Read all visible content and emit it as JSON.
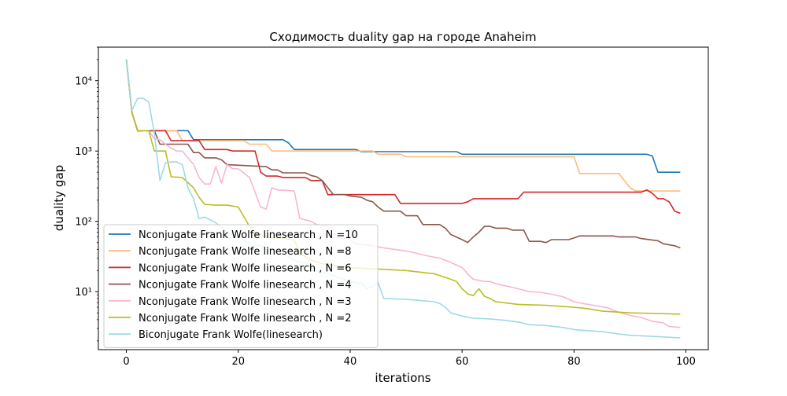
{
  "chart_data": {
    "type": "line",
    "title": "Сходимость duality gap на городе Anaheim",
    "xlabel": "iterations",
    "ylabel": "duality gap",
    "xlim": [
      -5,
      104
    ],
    "ylim": [
      1.5,
      30000
    ],
    "yscale": "log",
    "grid": false,
    "legend_position": "lower-left",
    "x_ticks": [
      0,
      20,
      40,
      60,
      80,
      100
    ],
    "x_tick_labels": [
      "0",
      "20",
      "40",
      "60",
      "80",
      "100"
    ],
    "y_ticks": [
      10,
      100,
      1000,
      10000
    ],
    "y_tick_labels": [
      "10¹",
      "10²",
      "10³",
      "10⁴"
    ],
    "series": [
      {
        "name": "Nconjugate Frank Wolfe linesearch , N =10",
        "color": "#1f77b4",
        "points": [
          [
            0,
            20000
          ],
          [
            1,
            3500
          ],
          [
            2,
            1950
          ],
          [
            11,
            1950
          ],
          [
            12,
            1450
          ],
          [
            28,
            1450
          ],
          [
            29,
            1300
          ],
          [
            30,
            1050
          ],
          [
            41,
            1050
          ],
          [
            42,
            980
          ],
          [
            59,
            980
          ],
          [
            60,
            900
          ],
          [
            93,
            900
          ],
          [
            94,
            850
          ],
          [
            95,
            500
          ],
          [
            99,
            500
          ]
        ]
      },
      {
        "name": "Nconjugate Frank Wolfe linesearch , N =8",
        "color": "#ffbb78",
        "points": [
          [
            0,
            20000
          ],
          [
            1,
            3500
          ],
          [
            2,
            1950
          ],
          [
            9,
            1950
          ],
          [
            10,
            1400
          ],
          [
            21,
            1400
          ],
          [
            22,
            1250
          ],
          [
            25,
            1250
          ],
          [
            26,
            1000
          ],
          [
            44,
            1000
          ],
          [
            45,
            900
          ],
          [
            49,
            900
          ],
          [
            50,
            830
          ],
          [
            80,
            830
          ],
          [
            81,
            480
          ],
          [
            88,
            480
          ],
          [
            90,
            300
          ],
          [
            91,
            270
          ],
          [
            99,
            270
          ]
        ]
      },
      {
        "name": "Nconjugate Frank Wolfe linesearch , N =6",
        "color": "#d62728",
        "points": [
          [
            0,
            20000
          ],
          [
            1,
            3500
          ],
          [
            2,
            1950
          ],
          [
            7,
            1950
          ],
          [
            8,
            1400
          ],
          [
            13,
            1400
          ],
          [
            14,
            1050
          ],
          [
            18,
            1050
          ],
          [
            19,
            1000
          ],
          [
            23,
            1000
          ],
          [
            24,
            500
          ],
          [
            25,
            440
          ],
          [
            27,
            440
          ],
          [
            28,
            420
          ],
          [
            32,
            420
          ],
          [
            33,
            380
          ],
          [
            35,
            380
          ],
          [
            36,
            240
          ],
          [
            48,
            240
          ],
          [
            49,
            180
          ],
          [
            60,
            180
          ],
          [
            61,
            190
          ],
          [
            62,
            210
          ],
          [
            70,
            210
          ],
          [
            71,
            260
          ],
          [
            92,
            260
          ],
          [
            93,
            280
          ],
          [
            94,
            250
          ],
          [
            95,
            210
          ],
          [
            96,
            210
          ],
          [
            97,
            190
          ],
          [
            98,
            140
          ],
          [
            99,
            130
          ]
        ]
      },
      {
        "name": "Nconjugate Frank Wolfe linesearch , N =4",
        "color": "#8c564b",
        "points": [
          [
            0,
            20000
          ],
          [
            1,
            3500
          ],
          [
            2,
            1950
          ],
          [
            5,
            1950
          ],
          [
            6,
            1250
          ],
          [
            11,
            1250
          ],
          [
            12,
            950
          ],
          [
            13,
            950
          ],
          [
            14,
            800
          ],
          [
            16,
            800
          ],
          [
            17,
            750
          ],
          [
            18,
            640
          ],
          [
            25,
            600
          ],
          [
            26,
            540
          ],
          [
            27,
            540
          ],
          [
            28,
            490
          ],
          [
            32,
            490
          ],
          [
            33,
            450
          ],
          [
            34,
            430
          ],
          [
            35,
            380
          ],
          [
            37,
            240
          ],
          [
            39,
            240
          ],
          [
            40,
            230
          ],
          [
            42,
            220
          ],
          [
            43,
            200
          ],
          [
            44,
            190
          ],
          [
            45,
            160
          ],
          [
            46,
            140
          ],
          [
            49,
            140
          ],
          [
            50,
            120
          ],
          [
            52,
            120
          ],
          [
            53,
            90
          ],
          [
            56,
            90
          ],
          [
            57,
            80
          ],
          [
            58,
            65
          ],
          [
            60,
            55
          ],
          [
            61,
            50
          ],
          [
            62,
            60
          ],
          [
            63,
            70
          ],
          [
            64,
            85
          ],
          [
            65,
            85
          ],
          [
            66,
            80
          ],
          [
            68,
            80
          ],
          [
            69,
            75
          ],
          [
            71,
            75
          ],
          [
            72,
            52
          ],
          [
            74,
            52
          ],
          [
            75,
            50
          ],
          [
            76,
            55
          ],
          [
            79,
            55
          ],
          [
            80,
            58
          ],
          [
            81,
            62
          ],
          [
            87,
            62
          ],
          [
            88,
            60
          ],
          [
            91,
            60
          ],
          [
            92,
            57
          ],
          [
            95,
            53
          ],
          [
            96,
            48
          ],
          [
            98,
            45
          ],
          [
            99,
            42
          ]
        ]
      },
      {
        "name": "Nconjugate Frank Wolfe linesearch , N =3",
        "color": "#f7b6d2",
        "points": [
          [
            0,
            20000
          ],
          [
            1,
            3500
          ],
          [
            2,
            1900
          ],
          [
            4,
            1950
          ],
          [
            5,
            1500
          ],
          [
            6,
            1450
          ],
          [
            7,
            1250
          ],
          [
            8,
            1100
          ],
          [
            9,
            1000
          ],
          [
            10,
            1000
          ],
          [
            11,
            800
          ],
          [
            12,
            650
          ],
          [
            13,
            420
          ],
          [
            14,
            340
          ],
          [
            15,
            340
          ],
          [
            16,
            600
          ],
          [
            17,
            350
          ],
          [
            18,
            640
          ],
          [
            19,
            560
          ],
          [
            20,
            560
          ],
          [
            22,
            420
          ],
          [
            24,
            160
          ],
          [
            25,
            150
          ],
          [
            26,
            300
          ],
          [
            27,
            280
          ],
          [
            30,
            270
          ],
          [
            31,
            110
          ],
          [
            33,
            100
          ],
          [
            34,
            90
          ],
          [
            36,
            85
          ],
          [
            37,
            60
          ],
          [
            40,
            55
          ],
          [
            41,
            48
          ],
          [
            44,
            45
          ],
          [
            46,
            42
          ],
          [
            48,
            40
          ],
          [
            50,
            38
          ],
          [
            52,
            35
          ],
          [
            54,
            32
          ],
          [
            56,
            30
          ],
          [
            57,
            28
          ],
          [
            58,
            26
          ],
          [
            60,
            22
          ],
          [
            61,
            18
          ],
          [
            62,
            15
          ],
          [
            64,
            14
          ],
          [
            65,
            14
          ],
          [
            66,
            13
          ],
          [
            68,
            12
          ],
          [
            70,
            11
          ],
          [
            72,
            10
          ],
          [
            74,
            9.8
          ],
          [
            76,
            9.2
          ],
          [
            78,
            8.5
          ],
          [
            80,
            7.2
          ],
          [
            82,
            6.7
          ],
          [
            84,
            6.3
          ],
          [
            86,
            5.9
          ],
          [
            88,
            5.1
          ],
          [
            90,
            4.6
          ],
          [
            92,
            4.3
          ],
          [
            94,
            3.8
          ],
          [
            96,
            3.6
          ],
          [
            97,
            3.2
          ],
          [
            99,
            3.1
          ]
        ]
      },
      {
        "name": "Nconjugate Frank Wolfe linesearch , N =2",
        "color": "#bcbd22",
        "points": [
          [
            0,
            20000
          ],
          [
            1,
            3500
          ],
          [
            2,
            1950
          ],
          [
            4,
            1950
          ],
          [
            5,
            1000
          ],
          [
            7,
            1000
          ],
          [
            8,
            430
          ],
          [
            10,
            420
          ],
          [
            12,
            300
          ],
          [
            13,
            220
          ],
          [
            14,
            175
          ],
          [
            16,
            170
          ],
          [
            18,
            170
          ],
          [
            20,
            160
          ],
          [
            22,
            85
          ],
          [
            23,
            70
          ],
          [
            25,
            60
          ],
          [
            30,
            55
          ],
          [
            31,
            35
          ],
          [
            33,
            28
          ],
          [
            35,
            25
          ],
          [
            40,
            22
          ],
          [
            45,
            21
          ],
          [
            50,
            20
          ],
          [
            55,
            18
          ],
          [
            57,
            16
          ],
          [
            58,
            15
          ],
          [
            59,
            14
          ],
          [
            60,
            11
          ],
          [
            61,
            9.3
          ],
          [
            62,
            8.8
          ],
          [
            63,
            11
          ],
          [
            64,
            8.6
          ],
          [
            65,
            8.0
          ],
          [
            66,
            7.2
          ],
          [
            68,
            6.9
          ],
          [
            70,
            6.6
          ],
          [
            75,
            6.4
          ],
          [
            80,
            6.0
          ],
          [
            82,
            5.8
          ],
          [
            85,
            5.3
          ],
          [
            90,
            5.0
          ],
          [
            95,
            4.9
          ],
          [
            99,
            4.8
          ]
        ]
      },
      {
        "name": "Biconjugate Frank Wolfe(linesearch)",
        "color": "#9edae5",
        "points": [
          [
            0,
            20000
          ],
          [
            1,
            3800
          ],
          [
            2,
            5600
          ],
          [
            3,
            5600
          ],
          [
            4,
            5000
          ],
          [
            5,
            1800
          ],
          [
            6,
            380
          ],
          [
            7,
            680
          ],
          [
            8,
            700
          ],
          [
            9,
            700
          ],
          [
            10,
            640
          ],
          [
            11,
            300
          ],
          [
            12,
            210
          ],
          [
            13,
            110
          ],
          [
            14,
            115
          ],
          [
            16,
            95
          ],
          [
            18,
            70
          ],
          [
            20,
            62
          ],
          [
            22,
            48
          ],
          [
            24,
            45
          ],
          [
            26,
            40
          ],
          [
            28,
            35
          ],
          [
            30,
            28
          ],
          [
            32,
            25
          ],
          [
            34,
            20
          ],
          [
            36,
            18
          ],
          [
            38,
            16
          ],
          [
            40,
            14
          ],
          [
            42,
            13
          ],
          [
            43,
            11
          ],
          [
            44,
            12
          ],
          [
            45,
            13.5
          ],
          [
            46,
            8
          ],
          [
            50,
            7.8
          ],
          [
            55,
            7.2
          ],
          [
            56,
            6.8
          ],
          [
            57,
            6
          ],
          [
            58,
            5
          ],
          [
            60,
            4.5
          ],
          [
            62,
            4.2
          ],
          [
            65,
            4.1
          ],
          [
            68,
            3.9
          ],
          [
            70,
            3.7
          ],
          [
            72,
            3.4
          ],
          [
            75,
            3.3
          ],
          [
            78,
            3.1
          ],
          [
            80,
            2.9
          ],
          [
            82,
            2.8
          ],
          [
            85,
            2.7
          ],
          [
            88,
            2.5
          ],
          [
            90,
            2.4
          ],
          [
            95,
            2.3
          ],
          [
            99,
            2.2
          ]
        ]
      }
    ]
  }
}
